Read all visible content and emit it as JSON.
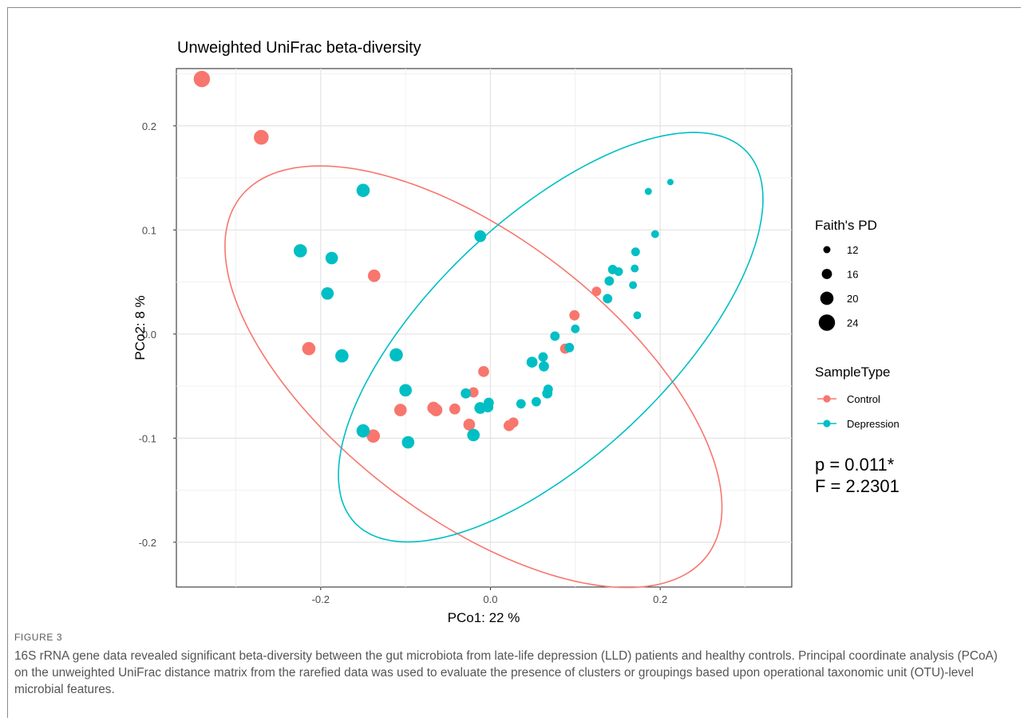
{
  "figure": {
    "label": "FIGURE 3",
    "caption": "16S rRNA gene data revealed significant beta-diversity between the gut microbiota from late-life depression (LLD) patients and healthy controls. Principal coordinate analysis (PCoA) on the unweighted UniFrac distance matrix from the rarefied data was used to evaluate the presence of clusters or groupings based upon operational taxonomic unit (OTU)-level microbial features."
  },
  "chart_data": {
    "type": "scatter",
    "title": "Unweighted UniFrac beta-diversity",
    "xlabel": "PCo1:  22 %",
    "ylabel": "PCo2:  8 %",
    "xlim": [
      -0.37,
      0.355
    ],
    "ylim": [
      -0.243,
      0.255
    ],
    "x_ticks": [
      -0.2,
      0.0,
      0.2
    ],
    "x_tick_labels": [
      "-0.2",
      "0.0",
      "0.2"
    ],
    "y_ticks": [
      -0.2,
      -0.1,
      0.0,
      0.1,
      0.2
    ],
    "y_tick_labels": [
      "-0.2",
      "-0.1",
      "0.0",
      "0.1",
      "0.2"
    ],
    "grid": true,
    "colors": {
      "Control": "#F8766D",
      "Depression": "#00BFC4"
    },
    "size_legend": {
      "title": "Faith's PD",
      "values": [
        12,
        16,
        20,
        24
      ],
      "labels": [
        "12",
        "16",
        "20",
        "24"
      ]
    },
    "color_legend": {
      "title": "SampleType",
      "labels": [
        "Control",
        "Depression"
      ]
    },
    "annotations": [
      "p = 0.011*",
      "F = 2.2301"
    ],
    "series": [
      {
        "name": "Control",
        "points": [
          {
            "x": -0.34,
            "y": 0.245,
            "pd": 24
          },
          {
            "x": -0.27,
            "y": 0.189,
            "pd": 22
          },
          {
            "x": -0.137,
            "y": 0.056,
            "pd": 19
          },
          {
            "x": -0.214,
            "y": -0.014,
            "pd": 20
          },
          {
            "x": -0.138,
            "y": -0.098,
            "pd": 20
          },
          {
            "x": -0.106,
            "y": -0.073,
            "pd": 19
          },
          {
            "x": -0.067,
            "y": -0.071,
            "pd": 19
          },
          {
            "x": -0.064,
            "y": -0.073,
            "pd": 19
          },
          {
            "x": -0.042,
            "y": -0.072,
            "pd": 17
          },
          {
            "x": -0.025,
            "y": -0.087,
            "pd": 18
          },
          {
            "x": -0.02,
            "y": -0.056,
            "pd": 16
          },
          {
            "x": -0.008,
            "y": -0.036,
            "pd": 17
          },
          {
            "x": 0.022,
            "y": -0.088,
            "pd": 17
          },
          {
            "x": 0.027,
            "y": -0.085,
            "pd": 16
          },
          {
            "x": 0.088,
            "y": -0.014,
            "pd": 16
          },
          {
            "x": 0.099,
            "y": 0.018,
            "pd": 16
          },
          {
            "x": 0.125,
            "y": 0.041,
            "pd": 15
          }
        ]
      },
      {
        "name": "Depression",
        "points": [
          {
            "x": -0.15,
            "y": 0.138,
            "pd": 20
          },
          {
            "x": -0.224,
            "y": 0.08,
            "pd": 20
          },
          {
            "x": -0.187,
            "y": 0.073,
            "pd": 19
          },
          {
            "x": -0.192,
            "y": 0.039,
            "pd": 19
          },
          {
            "x": -0.175,
            "y": -0.021,
            "pd": 20
          },
          {
            "x": -0.111,
            "y": -0.02,
            "pd": 20
          },
          {
            "x": -0.1,
            "y": -0.054,
            "pd": 19
          },
          {
            "x": -0.15,
            "y": -0.093,
            "pd": 20
          },
          {
            "x": -0.097,
            "y": -0.104,
            "pd": 19
          },
          {
            "x": -0.012,
            "y": 0.094,
            "pd": 18
          },
          {
            "x": -0.029,
            "y": -0.057,
            "pd": 16
          },
          {
            "x": -0.02,
            "y": -0.097,
            "pd": 19
          },
          {
            "x": -0.012,
            "y": -0.071,
            "pd": 18
          },
          {
            "x": -0.003,
            "y": -0.07,
            "pd": 17
          },
          {
            "x": -0.002,
            "y": -0.066,
            "pd": 16
          },
          {
            "x": 0.036,
            "y": -0.067,
            "pd": 15
          },
          {
            "x": 0.049,
            "y": -0.027,
            "pd": 17
          },
          {
            "x": 0.054,
            "y": -0.065,
            "pd": 15
          },
          {
            "x": 0.062,
            "y": -0.022,
            "pd": 15
          },
          {
            "x": 0.063,
            "y": -0.031,
            "pd": 16
          },
          {
            "x": 0.067,
            "y": -0.057,
            "pd": 16
          },
          {
            "x": 0.068,
            "y": -0.053,
            "pd": 15
          },
          {
            "x": 0.076,
            "y": -0.002,
            "pd": 15
          },
          {
            "x": 0.093,
            "y": -0.013,
            "pd": 15
          },
          {
            "x": 0.1,
            "y": 0.005,
            "pd": 14
          },
          {
            "x": 0.138,
            "y": 0.034,
            "pd": 15
          },
          {
            "x": 0.14,
            "y": 0.051,
            "pd": 15
          },
          {
            "x": 0.144,
            "y": 0.062,
            "pd": 15
          },
          {
            "x": 0.151,
            "y": 0.06,
            "pd": 14
          },
          {
            "x": 0.168,
            "y": 0.047,
            "pd": 13
          },
          {
            "x": 0.17,
            "y": 0.063,
            "pd": 13
          },
          {
            "x": 0.171,
            "y": 0.079,
            "pd": 14
          },
          {
            "x": 0.173,
            "y": 0.018,
            "pd": 13
          },
          {
            "x": 0.186,
            "y": 0.137,
            "pd": 12
          },
          {
            "x": 0.194,
            "y": 0.096,
            "pd": 13
          },
          {
            "x": 0.212,
            "y": 0.146,
            "pd": 11
          }
        ]
      }
    ],
    "ellipses": [
      {
        "name": "Control",
        "cx": -0.02,
        "cy": -0.041,
        "a": 0.326,
        "b": 0.143,
        "angle_deg": -29.3
      },
      {
        "name": "Depression",
        "cx": 0.071,
        "cy": -0.003,
        "a": 0.293,
        "b": 0.124,
        "angle_deg": 35.1
      }
    ]
  }
}
